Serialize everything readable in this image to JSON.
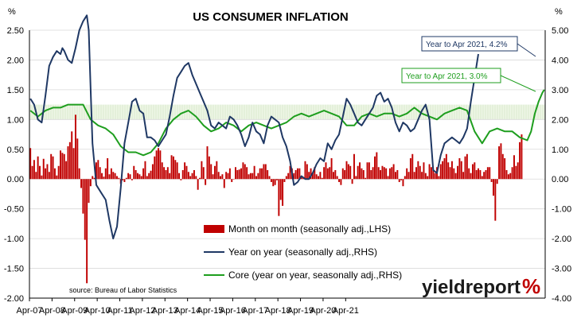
{
  "chart_data": {
    "type": "bar+line",
    "title": "US CONSUMER INFLATION",
    "left_unit": "%",
    "right_unit": "%",
    "left_axis": {
      "min": -2.0,
      "max": 2.5,
      "ticks": [
        "2.50",
        "2.00",
        "1.50",
        "1.00",
        "0.50",
        "0.00",
        "-0.50",
        "-1.00",
        "-1.50",
        "-2.00"
      ]
    },
    "right_axis": {
      "min": -4.0,
      "max": 5.0,
      "ticks": [
        "5.00",
        "4.00",
        "3.00",
        "2.00",
        "1.00",
        "0.00",
        "-1.00",
        "-2.00",
        "-3.00",
        "-4.00"
      ]
    },
    "x_tick_labels": [
      "Apr-07",
      "Apr-08",
      "Apr-09",
      "Apr-10",
      "Apr-11",
      "Apr-12",
      "Apr-13",
      "Apr-14",
      "Apr-15",
      "Apr-16",
      "Apr-17",
      "Apr-18",
      "Apr-19",
      "Apr-20",
      "Apr-21"
    ],
    "target_band_rhs": [
      2.0,
      2.5
    ],
    "legend": [
      {
        "label": "Month on month (seasonally adj.,LHS)",
        "color": "#c00000",
        "kind": "bar"
      },
      {
        "label": "Year on year (seasonally adj.,RHS)",
        "color": "#1f3864",
        "kind": "line"
      },
      {
        "label": "Core (year on year, seasonally adj.,RHS)",
        "color": "#1e9e1e",
        "kind": "line"
      }
    ],
    "annotations": [
      {
        "text": "Year to Apr 2021, 4.2%",
        "color": "#1f3864"
      },
      {
        "text": "Year to Apr 2021, 3.0%",
        "color": "#1e9e1e"
      }
    ],
    "source": "source: Bureau of Labor Statistics",
    "series": [
      {
        "name": "Month on month (seasonally adj.,LHS)",
        "axis": "left",
        "values": [
          0.52,
          0.22,
          0.32,
          0.12,
          0.38,
          0.22,
          0.06,
          0.34,
          0.18,
          0.25,
          0.12,
          0.42,
          0.38,
          0.18,
          0.06,
          0.22,
          0.48,
          0.44,
          0.42,
          0.3,
          0.55,
          0.62,
          0.8,
          0.52,
          1.08,
          0.68,
          0.18,
          -0.15,
          -0.58,
          -1.02,
          -1.75,
          -0.4,
          -0.12,
          0.05,
          0.02,
          0.28,
          0.32,
          0.2,
          0.1,
          0.04,
          0.18,
          0.35,
          0.08,
          0.18,
          0.12,
          0.1,
          0.05,
          0.02,
          -0.08,
          -0.02,
          -0.05,
          0.02,
          0.1,
          0.08,
          -0.02,
          0.22,
          0.15,
          0.1,
          0.08,
          0.05,
          0.18,
          0.3,
          0.05,
          0.1,
          0.14,
          0.25,
          0.38,
          0.48,
          0.52,
          0.48,
          0.28,
          0.2,
          0.15,
          0.2,
          0.1,
          0.4,
          0.38,
          0.32,
          0.28,
          0.1,
          -0.02,
          0.15,
          0.28,
          0.22,
          0.12,
          0.05,
          0.1,
          0.15,
          0.05,
          -0.18,
          0.02,
          0.3,
          0.2,
          -0.1,
          0.55,
          0.38,
          0.25,
          0.08,
          0.22,
          0.3,
          0.12,
          0.05,
          0.08,
          -0.15,
          0.12,
          0.1,
          0.18,
          -0.05,
          0.0,
          0.2,
          0.15,
          0.16,
          0.18,
          0.28,
          0.25,
          0.2,
          0.08,
          0.1,
          0.1,
          0.22,
          0.05,
          0.1,
          0.18,
          0.18,
          0.25,
          0.25,
          0.15,
          0.05,
          -0.05,
          -0.12,
          -0.1,
          -0.02,
          -0.62,
          -0.35,
          -0.45,
          -0.05,
          0.05,
          0.1,
          0.22,
          0.18,
          0.1,
          0.15,
          0.18,
          0.18,
          0.05,
          0.02,
          0.3,
          0.25,
          0.12,
          0.18,
          0.1,
          0.2,
          0.08,
          0.05,
          0.12,
          0.02,
          0.2,
          0.28,
          0.18,
          0.2,
          0.35,
          0.12,
          0.15,
          0.05,
          -0.05,
          -0.1,
          0.18,
          0.15,
          0.3,
          0.25,
          0.22,
          -0.08,
          0.42,
          0.05,
          0.22,
          0.28,
          0.18,
          0.15,
          0.02,
          0.28,
          0.28,
          0.15,
          0.2,
          0.38,
          0.45,
          0.2,
          0.15,
          0.22,
          0.2,
          0.18,
          0.05,
          0.18,
          0.2,
          0.25,
          0.12,
          0.15,
          -0.05,
          -0.02,
          -0.12,
          0.05,
          0.18,
          0.12,
          0.35,
          0.42,
          0.12,
          0.2,
          0.3,
          0.22,
          0.12,
          0.28,
          0.1,
          0.05,
          0.25,
          0.2,
          0.15,
          0.1,
          0.2,
          0.05,
          0.25,
          0.3,
          0.35,
          0.42,
          0.28,
          0.2,
          0.3,
          0.18,
          0.1,
          0.22,
          0.35,
          0.3,
          0.12,
          0.38,
          0.42,
          0.18,
          0.1,
          0.25,
          0.28,
          0.15,
          0.18,
          0.15,
          0.05,
          0.12,
          0.15,
          0.2,
          0.2,
          -0.05,
          -0.28,
          -0.7,
          -0.08,
          0.55,
          0.6,
          0.42,
          0.35,
          0.15,
          0.08,
          0.1,
          0.2,
          0.4,
          0.22,
          0.28,
          0.62,
          0.75
        ]
      },
      {
        "name": "Year on year (seasonally adj.,RHS)",
        "axis": "right",
        "x_month_index": [
          0,
          2,
          4,
          6,
          8,
          10,
          12,
          14,
          16,
          17,
          18,
          20,
          22,
          24,
          26,
          28,
          30,
          31,
          32,
          33,
          35,
          37,
          40,
          42,
          44,
          46,
          48,
          50,
          52,
          54,
          56,
          58,
          60,
          62,
          64,
          66,
          68,
          70,
          72,
          74,
          76,
          78,
          80,
          82,
          84,
          86,
          88,
          90,
          92,
          94,
          96,
          98,
          100,
          102,
          104,
          106,
          108,
          110,
          112,
          114,
          116,
          118,
          120,
          122,
          124,
          126,
          128,
          130,
          132,
          134,
          136,
          138,
          140,
          142,
          144,
          146,
          148,
          150,
          152,
          154,
          156,
          158,
          160,
          162,
          164,
          166,
          168,
          170,
          172,
          174,
          176,
          178,
          180,
          182,
          184,
          186,
          188,
          190,
          192,
          194,
          196,
          198,
          200,
          202,
          204,
          206,
          208,
          210,
          212,
          214,
          216,
          218,
          220,
          222,
          224,
          226,
          228,
          230,
          232,
          234,
          236,
          238,
          240,
          242,
          244,
          246,
          248,
          250,
          252,
          254,
          256,
          258,
          260,
          262,
          264,
          266,
          268,
          270,
          272,
          273
        ],
        "values": [
          2.7,
          2.5,
          2.0,
          1.9,
          2.8,
          3.8,
          4.1,
          4.3,
          4.2,
          4.4,
          4.3,
          4.0,
          3.9,
          4.4,
          5.0,
          5.3,
          5.5,
          5.0,
          3.0,
          1.2,
          -0.2,
          -0.4,
          -0.7,
          -1.4,
          -2.0,
          -1.6,
          -0.3,
          1.2,
          1.9,
          2.6,
          2.7,
          2.3,
          2.2,
          1.4,
          1.4,
          1.3,
          1.1,
          1.3,
          1.5,
          2.1,
          2.8,
          3.4,
          3.6,
          3.8,
          3.9,
          3.5,
          3.2,
          2.9,
          2.6,
          2.3,
          1.8,
          1.7,
          1.9,
          1.8,
          1.7,
          2.1,
          2.0,
          1.8,
          1.5,
          1.1,
          1.4,
          1.9,
          1.6,
          1.5,
          1.2,
          1.8,
          2.1,
          2.0,
          1.9,
          1.4,
          1.1,
          0.6,
          -0.2,
          -0.1,
          0.1,
          0.0,
          0.0,
          0.2,
          0.5,
          0.7,
          0.6,
          1.2,
          1.0,
          1.3,
          1.5,
          2.1,
          2.7,
          2.5,
          2.2,
          1.9,
          1.8,
          2.0,
          2.2,
          2.4,
          2.8,
          2.9,
          2.6,
          2.7,
          2.4,
          1.9,
          1.6,
          1.9,
          1.8,
          1.6,
          1.7,
          2.0,
          2.3,
          2.5,
          2.0,
          0.3,
          0.2,
          0.8,
          1.2,
          1.3,
          1.4,
          1.3,
          1.2,
          1.4,
          1.7,
          2.6,
          3.4,
          4.2
        ]
      },
      {
        "name": "Core (year on year, seasonally adj.,RHS)",
        "axis": "right",
        "x_month_index": [
          0,
          4,
          8,
          12,
          16,
          20,
          24,
          28,
          32,
          36,
          40,
          44,
          48,
          52,
          56,
          60,
          64,
          68,
          72,
          76,
          80,
          84,
          88,
          92,
          96,
          100,
          104,
          108,
          112,
          116,
          120,
          124,
          128,
          132,
          136,
          140,
          144,
          148,
          152,
          156,
          160,
          164,
          168,
          172,
          176,
          180,
          184,
          188,
          192,
          196,
          200,
          204,
          208,
          212,
          216,
          220,
          224,
          228,
          232,
          236,
          240,
          244,
          248,
          252,
          256,
          260,
          264,
          266,
          268,
          270,
          272,
          273
        ],
        "values": [
          2.3,
          2.1,
          2.3,
          2.4,
          2.4,
          2.5,
          2.5,
          2.5,
          2.0,
          1.8,
          1.7,
          1.5,
          1.1,
          0.9,
          0.9,
          0.8,
          0.9,
          1.2,
          1.7,
          2.0,
          2.2,
          2.3,
          2.1,
          1.8,
          1.6,
          1.7,
          1.9,
          1.8,
          1.6,
          1.8,
          1.9,
          1.8,
          1.7,
          1.8,
          1.9,
          2.1,
          2.2,
          2.1,
          2.2,
          2.3,
          2.2,
          2.1,
          1.8,
          1.8,
          2.1,
          2.2,
          2.1,
          2.2,
          2.2,
          2.1,
          2.2,
          2.4,
          2.2,
          2.1,
          2.0,
          2.2,
          2.3,
          2.4,
          2.3,
          1.6,
          1.2,
          1.6,
          1.7,
          1.6,
          1.6,
          1.4,
          1.3,
          1.6,
          2.2,
          2.6,
          2.9,
          3.0
        ]
      }
    ]
  },
  "brand": {
    "name": "yieldreport",
    "symbol": "%"
  }
}
